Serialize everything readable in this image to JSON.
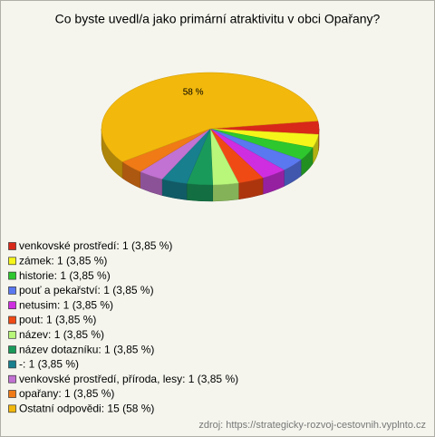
{
  "chart_data": {
    "type": "pie",
    "title": "Co byste uvedl/a jako primární atraktivitu v obci Opařany?",
    "categories": [
      "venkovské prostředí: 1 (3,85 %)",
      "zámek: 1 (3,85 %)",
      "historie: 1 (3,85 %)",
      "pouť a pekařství: 1 (3,85 %)",
      "netusim: 1 (3,85 %)",
      "pout: 1 (3,85 %)",
      "název: 1 (3,85 %)",
      "název dotazníku: 1 (3,85 %)",
      "-: 1 (3,85 %)",
      "venkovské prostředí, příroda, lesy: 1 (3,85 %)",
      "opařany: 1 (3,85 %)",
      "Ostatní odpovědi: 15 (58 %)"
    ],
    "values": [
      3.85,
      3.85,
      3.85,
      3.85,
      3.85,
      3.85,
      3.85,
      3.85,
      3.85,
      3.85,
      3.85,
      58
    ],
    "value_labels": [
      null,
      null,
      null,
      null,
      null,
      null,
      null,
      null,
      null,
      null,
      null,
      "58 %"
    ],
    "colors": [
      "#d8281a",
      "#f5f51a",
      "#2ec82e",
      "#5a78f0",
      "#cf2ee0",
      "#f04a14",
      "#b8f77a",
      "#1a9a5a",
      "#177f8e",
      "#c272d2",
      "#ef7a16",
      "#f2b80c"
    ],
    "legend": "bottom-left",
    "source": "zdroj: https://strategicky-rozvoj-cestovnih.vyplnto.cz"
  }
}
